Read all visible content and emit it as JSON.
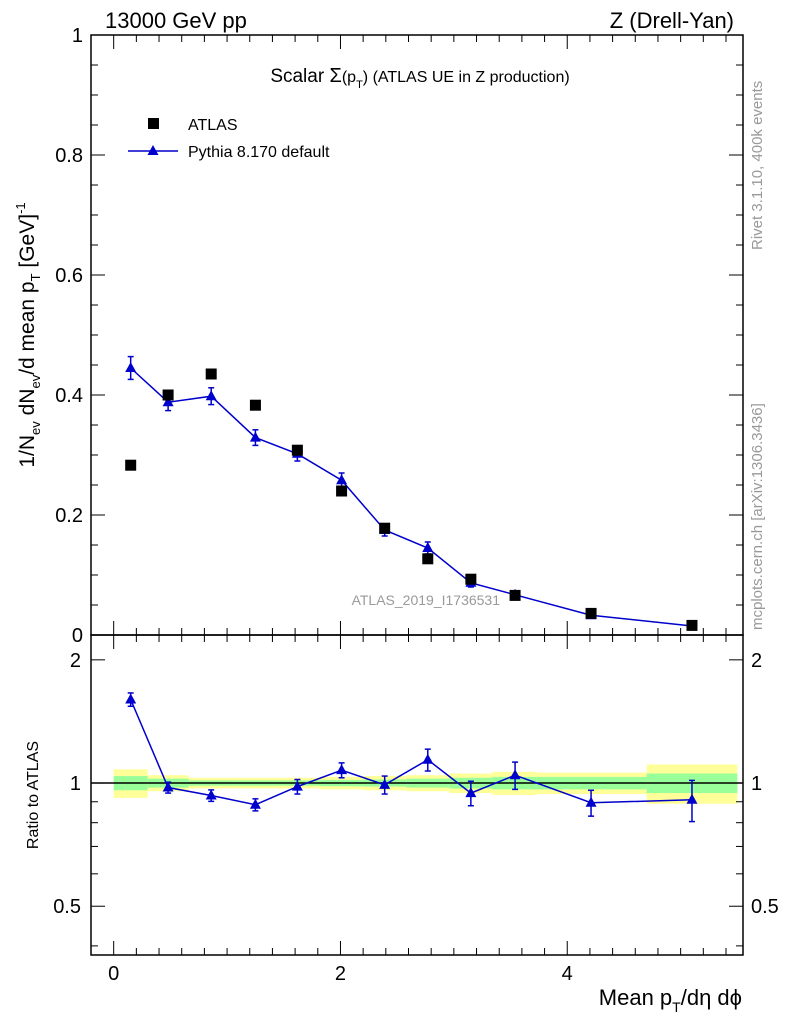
{
  "header": {
    "left": "13000 GeV pp",
    "right": "Z (Drell-Yan)"
  },
  "title": {
    "prefix": "Scalar ",
    "sigma": "Σ",
    "open": "(p",
    "sub": "T",
    "close": ")",
    "suffix": " (ATLAS UE in Z production)"
  },
  "side_labels": {
    "rivet": "Rivet 3.1.10,  400k events",
    "mcplots": "mcplots.cern.ch [arXiv:1306.3436]"
  },
  "watermark": "ATLAS_2019_I1736531",
  "axes": {
    "top_ylabel": {
      "a": "1/N",
      "a_sub": "ev",
      "b": " dN",
      "b_sub": "ev",
      "c": "/d mean p",
      "c_sub": "T",
      "d": " [GeV]",
      "d_sup": "-1"
    },
    "bottom_ylabel": "Ratio to ATLAS",
    "xlabel": {
      "a": "Mean p",
      "a_sub": "T",
      "b": "/dη dϕ"
    }
  },
  "legend": {
    "data_label": "ATLAS",
    "mc_label": "Pythia 8.170 default"
  },
  "colors": {
    "mc": "#0000cc",
    "band_outer": "#ffff99",
    "band_inner": "#99ff99",
    "data": "#000000"
  },
  "chart_data": [
    {
      "type": "scatter",
      "panel": "main",
      "xlim": [
        -0.2,
        5.55
      ],
      "ylim": [
        0,
        1.0
      ],
      "yticks": [
        0,
        0.2,
        0.4,
        0.6,
        0.8,
        1
      ],
      "ytick_labels": [
        "0",
        "0.2",
        "0.4",
        "0.6",
        "0.8",
        "1"
      ],
      "legend_position": "top-left",
      "series": [
        {
          "name": "ATLAS",
          "marker": "square",
          "x": [
            0.15,
            0.48,
            0.86,
            1.25,
            1.62,
            2.01,
            2.39,
            2.77,
            3.15,
            3.54,
            4.21,
            5.1
          ],
          "y": [
            0.283,
            0.4,
            0.435,
            0.383,
            0.308,
            0.24,
            0.178,
            0.127,
            0.093,
            0.066,
            0.036,
            0.016
          ]
        },
        {
          "name": "Pythia 8.170 default",
          "marker": "triangle",
          "x": [
            0.15,
            0.48,
            0.86,
            1.25,
            1.62,
            2.01,
            2.39,
            2.77,
            3.15,
            3.54,
            4.21,
            5.1
          ],
          "y": [
            0.445,
            0.388,
            0.398,
            0.329,
            0.302,
            0.258,
            0.175,
            0.145,
            0.087,
            0.067,
            0.033,
            0.015
          ],
          "err": [
            0.019,
            0.014,
            0.014,
            0.013,
            0.012,
            0.012,
            0.01,
            0.01,
            0.007,
            0.005,
            0.003,
            0.002
          ]
        }
      ]
    },
    {
      "type": "line",
      "panel": "ratio",
      "xlim": [
        -0.2,
        5.55
      ],
      "ylim": [
        0.38,
        2.3
      ],
      "log_y": true,
      "yticks": [
        0.5,
        1,
        2
      ],
      "ytick_labels": [
        "0.5",
        "1",
        "2"
      ],
      "xticks": [
        0,
        2,
        4
      ],
      "xtick_labels": [
        "0",
        "2",
        "4"
      ],
      "bands": {
        "edges": [
          0.0,
          0.3,
          0.66,
          1.06,
          1.44,
          1.82,
          2.2,
          2.58,
          2.96,
          3.34,
          3.73,
          4.7,
          5.5
        ],
        "outer_lo": [
          0.92,
          0.955,
          0.97,
          0.97,
          0.97,
          0.965,
          0.96,
          0.955,
          0.945,
          0.935,
          0.94,
          0.89
        ],
        "outer_hi": [
          1.08,
          1.045,
          1.03,
          1.03,
          1.03,
          1.035,
          1.04,
          1.045,
          1.055,
          1.065,
          1.06,
          1.11
        ],
        "inner_lo": [
          0.96,
          0.975,
          0.985,
          0.985,
          0.985,
          0.982,
          0.98,
          0.975,
          0.97,
          0.965,
          0.965,
          0.945
        ],
        "inner_hi": [
          1.04,
          1.025,
          1.015,
          1.015,
          1.015,
          1.018,
          1.02,
          1.025,
          1.03,
          1.035,
          1.035,
          1.055
        ]
      },
      "series": [
        {
          "name": "Pythia 8.170 default",
          "x": [
            0.15,
            0.48,
            0.86,
            1.25,
            1.62,
            2.01,
            2.39,
            2.77,
            3.15,
            3.54,
            4.21,
            5.1
          ],
          "y": [
            1.6,
            0.975,
            0.932,
            0.885,
            0.98,
            1.075,
            0.99,
            1.14,
            0.945,
            1.045,
            0.895,
            0.91
          ],
          "err": [
            0.06,
            0.03,
            0.03,
            0.03,
            0.04,
            0.045,
            0.05,
            0.07,
            0.065,
            0.08,
            0.065,
            0.105
          ]
        }
      ]
    }
  ]
}
